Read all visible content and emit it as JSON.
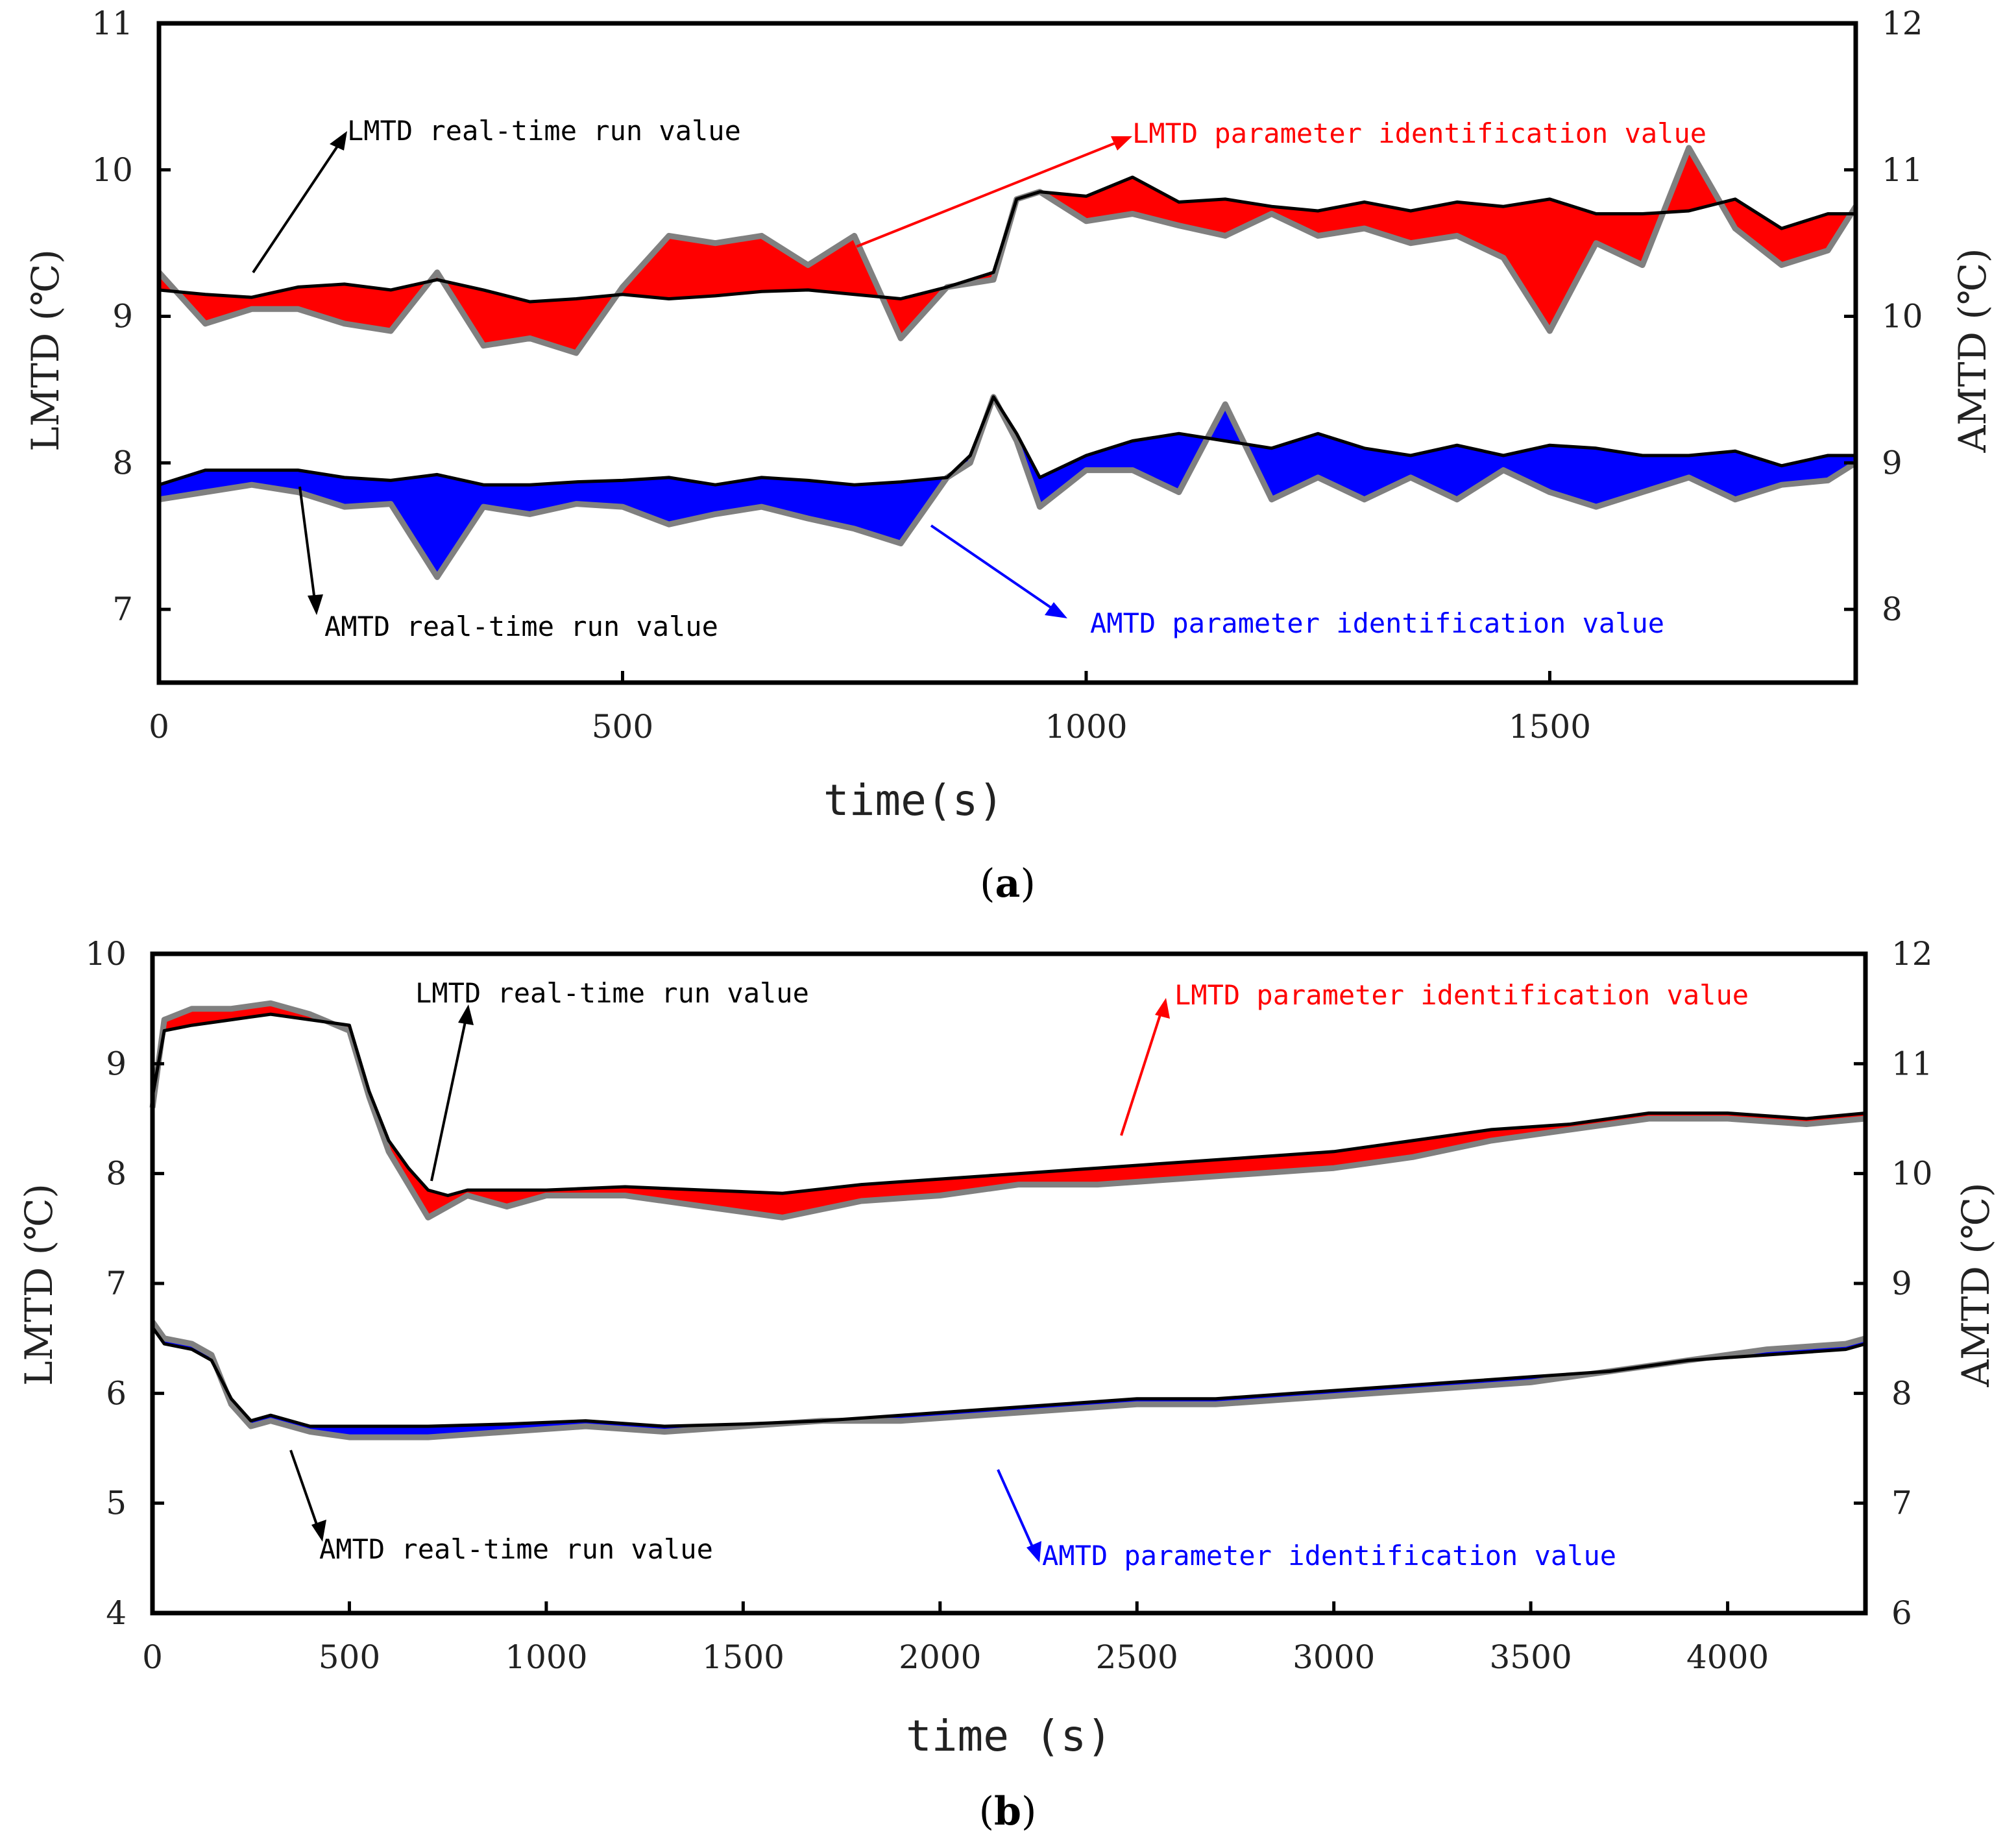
{
  "colors": {
    "lmtd_fill": "#ff0000",
    "amtd_fill": "#0000ff",
    "realtime_line": "#000000",
    "ident_line": "#808080",
    "lmtd_ident_text": "#ff0000",
    "amtd_ident_text": "#0000ff",
    "realtime_text": "#000000"
  },
  "chart_data": [
    {
      "panel": "a",
      "caption_open": "(",
      "caption_letter": "a",
      "caption_close": ")",
      "type": "line",
      "xlabel": "time(s)",
      "ylabel_left": "LMTD (℃)",
      "ylabel_right": "AMTD (℃)",
      "xlim": [
        0,
        1830
      ],
      "ylim_left": [
        6.5,
        11
      ],
      "ylim_right": [
        7.5,
        12
      ],
      "xticks": [
        "0",
        "500",
        "1000",
        "1500"
      ],
      "yticks_left": [
        "7",
        "8",
        "9",
        "10",
        "11"
      ],
      "yticks_right": [
        "8",
        "9",
        "10",
        "11",
        "12"
      ],
      "annotations": {
        "lmtd_realtime": "LMTD real-time run value",
        "lmtd_ident": "LMTD parameter identification value",
        "amtd_realtime": "AMTD real-time run value",
        "amtd_ident": "AMTD parameter identification value"
      },
      "series": [
        {
          "name": "LMTD real-time run value",
          "axis": "left",
          "x": [
            0,
            50,
            100,
            150,
            200,
            250,
            300,
            350,
            400,
            450,
            500,
            550,
            600,
            650,
            700,
            750,
            800,
            850,
            900,
            925,
            950,
            1000,
            1050,
            1100,
            1150,
            1200,
            1250,
            1300,
            1350,
            1400,
            1450,
            1500,
            1550,
            1600,
            1650,
            1700,
            1750,
            1800,
            1830
          ],
          "values": [
            9.18,
            9.15,
            9.13,
            9.2,
            9.22,
            9.18,
            9.25,
            9.18,
            9.1,
            9.12,
            9.15,
            9.12,
            9.14,
            9.17,
            9.18,
            9.15,
            9.12,
            9.2,
            9.3,
            9.8,
            9.85,
            9.82,
            9.95,
            9.78,
            9.8,
            9.75,
            9.72,
            9.78,
            9.72,
            9.78,
            9.75,
            9.8,
            9.7,
            9.7,
            9.72,
            9.8,
            9.6,
            9.7,
            9.7
          ]
        },
        {
          "name": "LMTD parameter identification value",
          "axis": "left",
          "x": [
            0,
            50,
            100,
            150,
            200,
            250,
            300,
            350,
            400,
            450,
            500,
            550,
            600,
            650,
            700,
            750,
            800,
            850,
            900,
            925,
            950,
            1000,
            1050,
            1100,
            1150,
            1200,
            1250,
            1300,
            1350,
            1400,
            1450,
            1500,
            1550,
            1600,
            1650,
            1700,
            1750,
            1800,
            1830
          ],
          "values": [
            9.3,
            8.95,
            9.05,
            9.05,
            8.95,
            8.9,
            9.3,
            8.8,
            8.85,
            8.75,
            9.2,
            9.55,
            9.5,
            9.55,
            9.35,
            9.55,
            8.85,
            9.2,
            9.25,
            9.8,
            9.85,
            9.65,
            9.7,
            9.62,
            9.55,
            9.7,
            9.55,
            9.6,
            9.5,
            9.55,
            9.4,
            8.9,
            9.5,
            9.35,
            10.15,
            9.6,
            9.35,
            9.45,
            9.75
          ]
        },
        {
          "name": "AMTD real-time run value",
          "axis": "left",
          "x": [
            0,
            50,
            100,
            150,
            200,
            250,
            300,
            350,
            400,
            450,
            500,
            550,
            600,
            650,
            700,
            750,
            800,
            850,
            875,
            900,
            925,
            950,
            1000,
            1050,
            1100,
            1150,
            1200,
            1250,
            1300,
            1350,
            1400,
            1450,
            1500,
            1550,
            1600,
            1650,
            1700,
            1750,
            1800,
            1830
          ],
          "values": [
            7.85,
            7.95,
            7.95,
            7.95,
            7.9,
            7.88,
            7.92,
            7.85,
            7.85,
            7.87,
            7.88,
            7.9,
            7.85,
            7.9,
            7.88,
            7.85,
            7.87,
            7.9,
            8.05,
            8.45,
            8.2,
            7.9,
            8.05,
            8.15,
            8.2,
            8.15,
            8.1,
            8.2,
            8.1,
            8.05,
            8.12,
            8.05,
            8.12,
            8.1,
            8.05,
            8.05,
            8.08,
            7.98,
            8.05,
            8.05
          ]
        },
        {
          "name": "AMTD parameter identification value",
          "axis": "left",
          "x": [
            0,
            50,
            100,
            150,
            200,
            250,
            300,
            350,
            400,
            450,
            500,
            550,
            600,
            650,
            700,
            750,
            800,
            850,
            875,
            900,
            925,
            950,
            1000,
            1050,
            1100,
            1150,
            1200,
            1250,
            1300,
            1350,
            1400,
            1450,
            1500,
            1550,
            1600,
            1650,
            1700,
            1750,
            1800,
            1830
          ],
          "values": [
            7.75,
            7.8,
            7.85,
            7.8,
            7.7,
            7.72,
            7.22,
            7.7,
            7.65,
            7.72,
            7.7,
            7.58,
            7.65,
            7.7,
            7.62,
            7.55,
            7.45,
            7.9,
            8.0,
            8.45,
            8.15,
            7.7,
            7.95,
            7.95,
            7.8,
            8.4,
            7.75,
            7.9,
            7.75,
            7.9,
            7.75,
            7.95,
            7.8,
            7.7,
            7.8,
            7.9,
            7.75,
            7.85,
            7.88,
            8.0
          ]
        }
      ]
    },
    {
      "panel": "b",
      "caption_open": "(",
      "caption_letter": "b",
      "caption_close": ")",
      "type": "line",
      "xlabel": "time (s)",
      "ylabel_left": "LMTD (℃)",
      "ylabel_right": "AMTD (℃)",
      "xlim": [
        0,
        4350
      ],
      "ylim_left": [
        4,
        10
      ],
      "ylim_right": [
        6,
        12
      ],
      "xticks": [
        "0",
        "500",
        "1000",
        "1500",
        "2000",
        "2500",
        "3000",
        "3500",
        "4000"
      ],
      "yticks_left": [
        "4",
        "5",
        "6",
        "7",
        "8",
        "9",
        "10"
      ],
      "yticks_right": [
        "6",
        "7",
        "8",
        "9",
        "10",
        "11",
        "12"
      ],
      "annotations": {
        "lmtd_realtime": "LMTD real-time run value",
        "lmtd_ident": "LMTD parameter identification value",
        "amtd_realtime": "AMTD real-time run value",
        "amtd_ident": "AMTD parameter identification value"
      },
      "series": [
        {
          "name": "LMTD real-time run value",
          "axis": "left",
          "x": [
            0,
            30,
            100,
            200,
            300,
            400,
            500,
            550,
            600,
            650,
            700,
            750,
            800,
            900,
            1000,
            1200,
            1400,
            1600,
            1800,
            2000,
            2200,
            2400,
            2600,
            2800,
            3000,
            3200,
            3400,
            3600,
            3800,
            4000,
            4200,
            4350
          ],
          "values": [
            8.7,
            9.3,
            9.35,
            9.4,
            9.45,
            9.4,
            9.35,
            8.75,
            8.3,
            8.05,
            7.85,
            7.8,
            7.85,
            7.85,
            7.85,
            7.88,
            7.85,
            7.82,
            7.9,
            7.95,
            8.0,
            8.05,
            8.1,
            8.15,
            8.2,
            8.3,
            8.4,
            8.45,
            8.55,
            8.55,
            8.5,
            8.55
          ]
        },
        {
          "name": "LMTD parameter identification value",
          "axis": "left",
          "x": [
            0,
            30,
            100,
            200,
            300,
            400,
            500,
            550,
            600,
            650,
            700,
            750,
            800,
            900,
            1000,
            1200,
            1400,
            1600,
            1800,
            2000,
            2200,
            2400,
            2600,
            2800,
            3000,
            3200,
            3400,
            3600,
            3800,
            4000,
            4200,
            4350
          ],
          "values": [
            8.6,
            9.4,
            9.5,
            9.5,
            9.55,
            9.45,
            9.3,
            8.7,
            8.2,
            7.9,
            7.6,
            7.7,
            7.8,
            7.7,
            7.8,
            7.8,
            7.7,
            7.6,
            7.75,
            7.8,
            7.9,
            7.9,
            7.95,
            8.0,
            8.05,
            8.15,
            8.3,
            8.4,
            8.5,
            8.5,
            8.45,
            8.5
          ]
        },
        {
          "name": "AMTD real-time run value",
          "axis": "left",
          "x": [
            0,
            30,
            100,
            150,
            200,
            250,
            300,
            400,
            500,
            700,
            900,
            1100,
            1300,
            1500,
            1700,
            1900,
            2100,
            2300,
            2500,
            2700,
            2900,
            3100,
            3300,
            3500,
            3700,
            3900,
            4100,
            4300,
            4350
          ],
          "values": [
            6.6,
            6.45,
            6.4,
            6.3,
            5.95,
            5.75,
            5.8,
            5.7,
            5.7,
            5.7,
            5.72,
            5.75,
            5.7,
            5.72,
            5.75,
            5.8,
            5.85,
            5.9,
            5.95,
            5.95,
            6.0,
            6.05,
            6.1,
            6.15,
            6.2,
            6.3,
            6.35,
            6.4,
            6.45
          ]
        },
        {
          "name": "AMTD parameter identification value",
          "axis": "left",
          "x": [
            0,
            30,
            100,
            150,
            200,
            250,
            300,
            400,
            500,
            700,
            900,
            1100,
            1300,
            1500,
            1700,
            1900,
            2100,
            2300,
            2500,
            2700,
            2900,
            3100,
            3300,
            3500,
            3700,
            3900,
            4100,
            4300,
            4350
          ],
          "values": [
            6.65,
            6.5,
            6.45,
            6.35,
            5.9,
            5.7,
            5.75,
            5.65,
            5.6,
            5.6,
            5.65,
            5.7,
            5.65,
            5.7,
            5.75,
            5.75,
            5.8,
            5.85,
            5.9,
            5.9,
            5.95,
            6.0,
            6.05,
            6.1,
            6.2,
            6.3,
            6.4,
            6.45,
            6.5
          ]
        }
      ]
    }
  ]
}
